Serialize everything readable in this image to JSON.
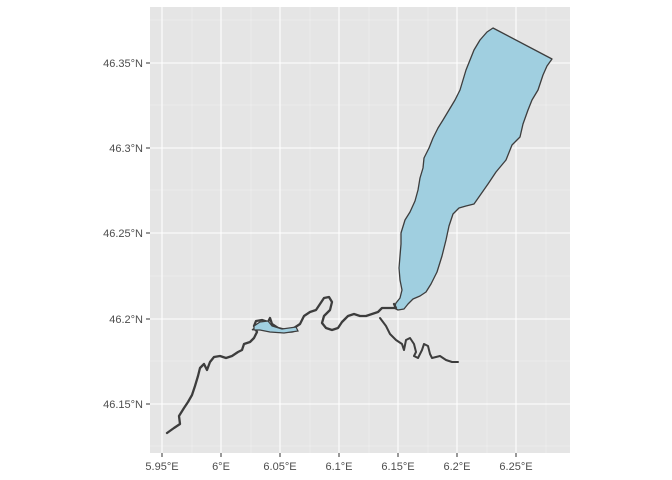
{
  "map": {
    "panel_background": "#e5e5e5",
    "water_fill": "#a0cfe0",
    "outline_color": "#3d3d3d",
    "x_axis": {
      "ticks": [
        {
          "value": 5.95,
          "label": "5.95°E"
        },
        {
          "value": 6.0,
          "label": "6°E"
        },
        {
          "value": 6.05,
          "label": "6.05°E"
        },
        {
          "value": 6.1,
          "label": "6.1°E"
        },
        {
          "value": 6.15,
          "label": "6.15°E"
        },
        {
          "value": 6.2,
          "label": "6.2°E"
        },
        {
          "value": 6.25,
          "label": "6.25°E"
        }
      ]
    },
    "y_axis": {
      "ticks": [
        {
          "value": 46.15,
          "label": "46.15°N"
        },
        {
          "value": 46.2,
          "label": "46.2°N"
        },
        {
          "value": 46.25,
          "label": "46.25°N"
        },
        {
          "value": 46.3,
          "label": "46.3°N"
        },
        {
          "value": 46.35,
          "label": "46.35°N"
        }
      ]
    },
    "features": [
      {
        "name": "lake",
        "kind": "water-body"
      },
      {
        "name": "river",
        "kind": "river"
      }
    ]
  }
}
